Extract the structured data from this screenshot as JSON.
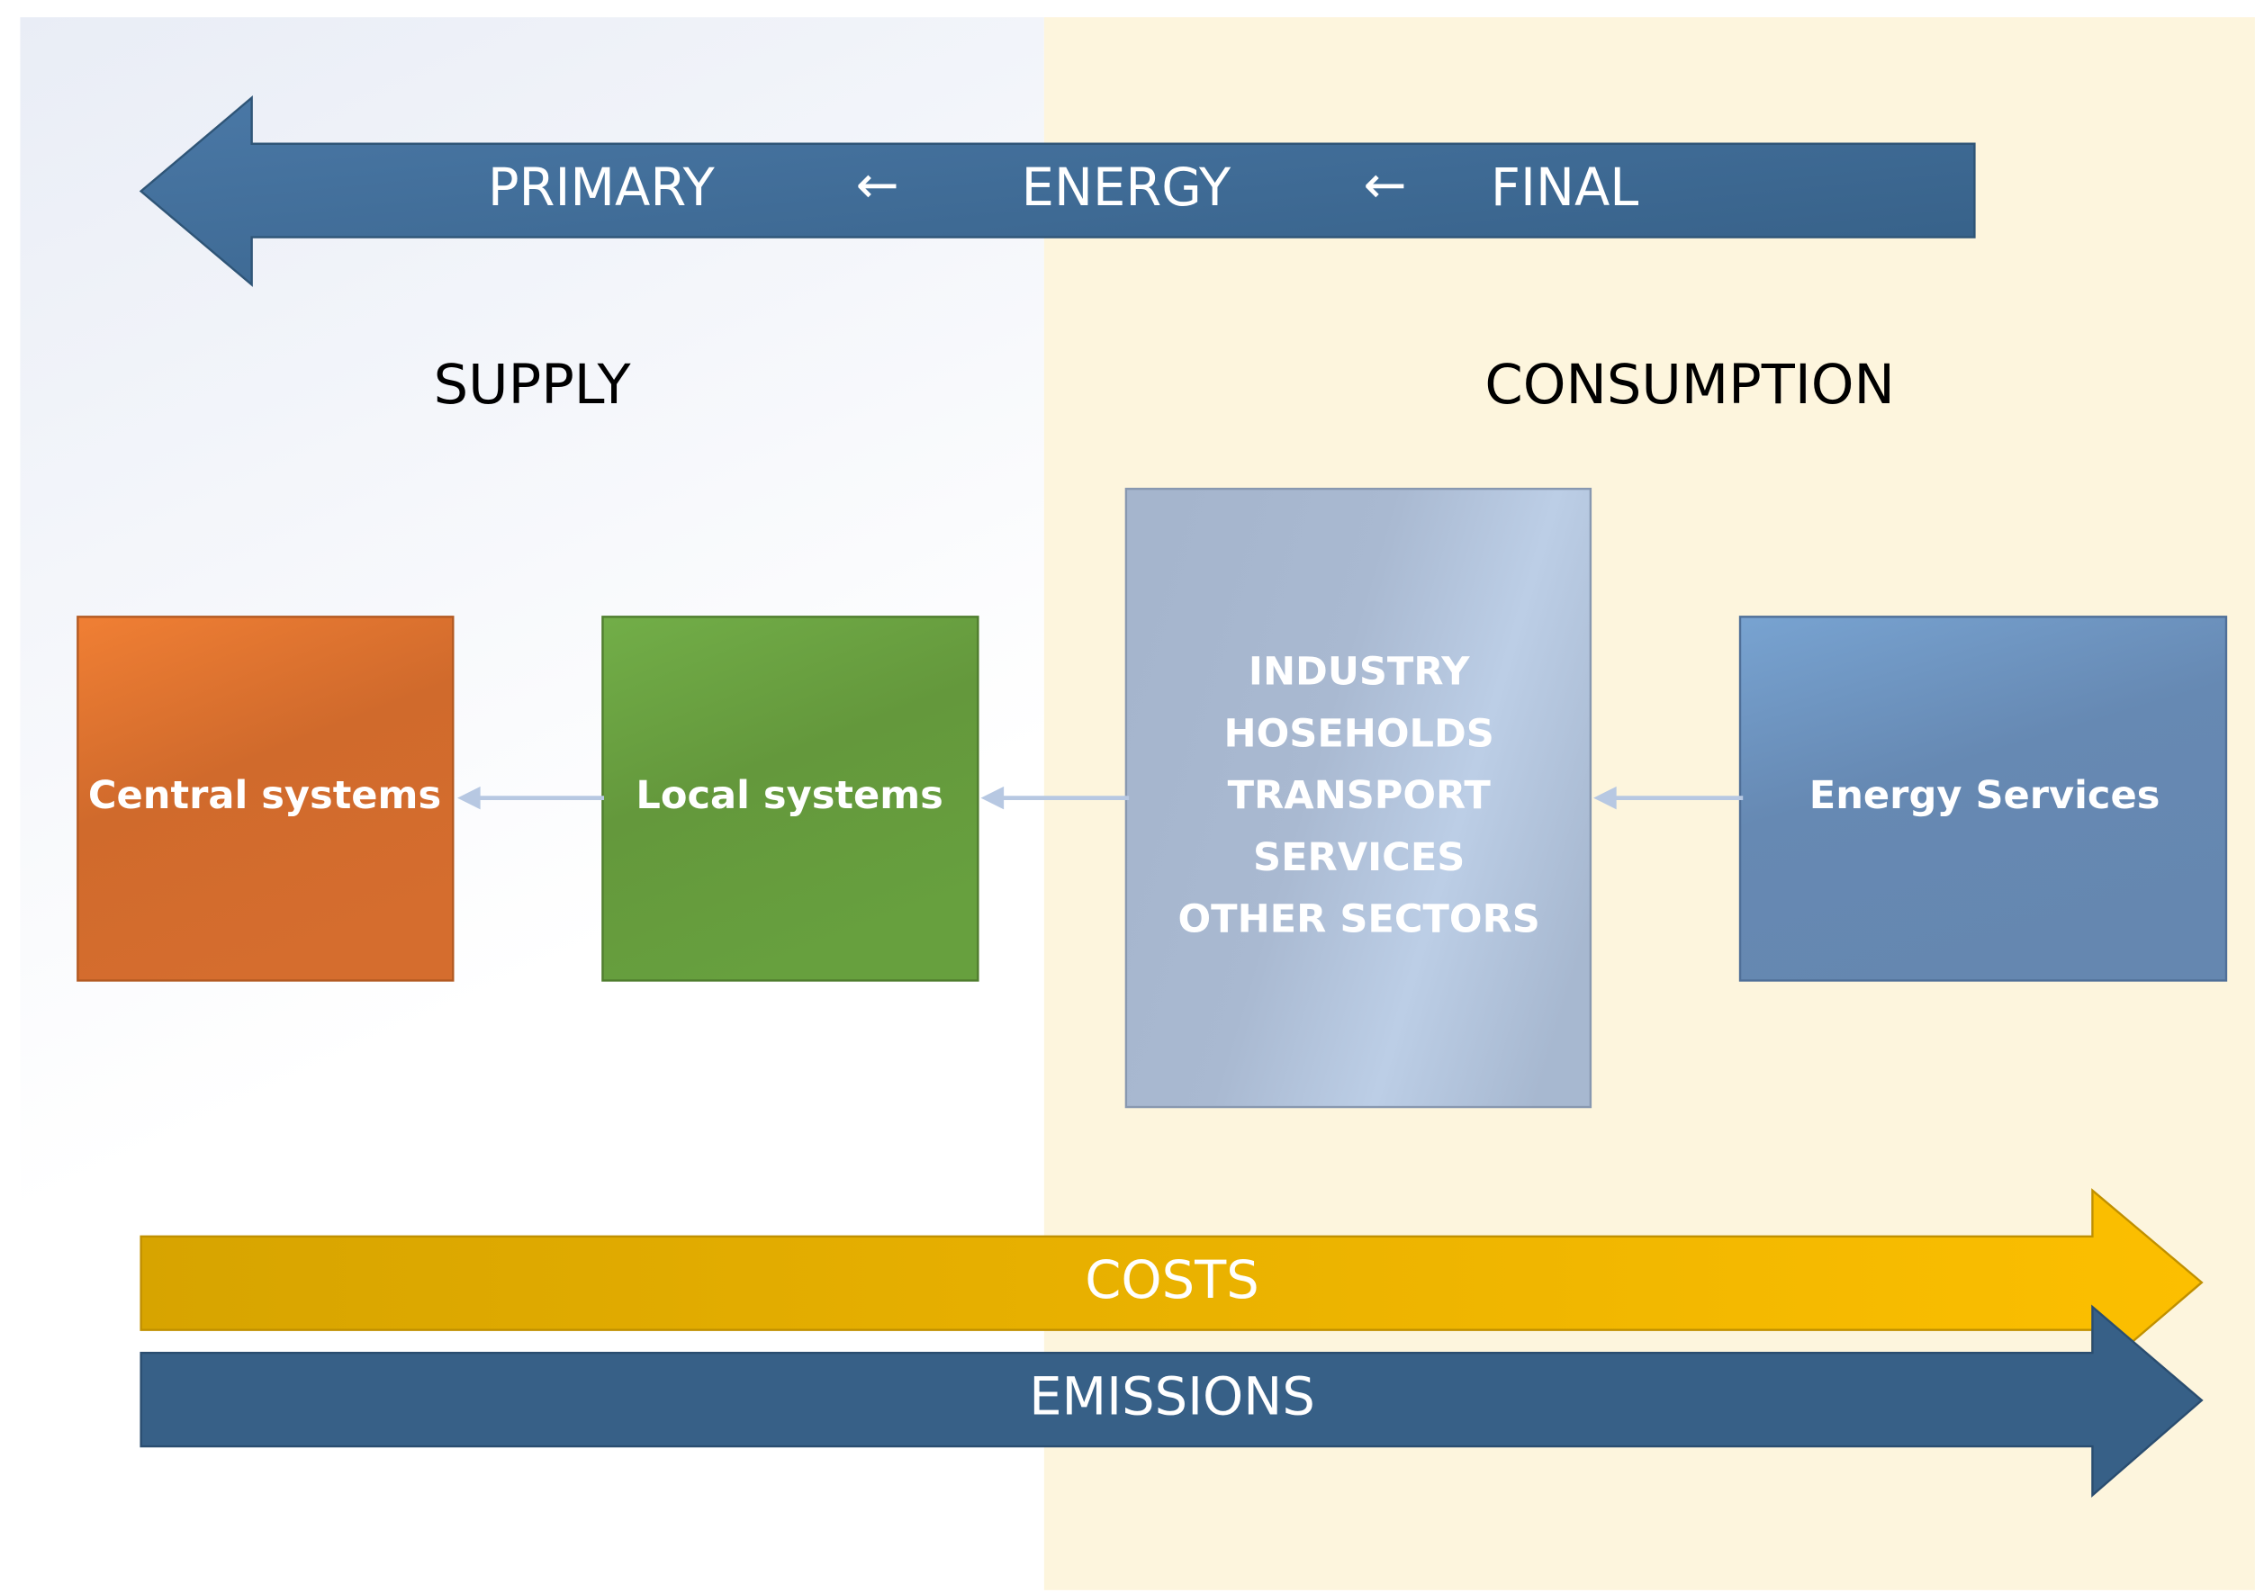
{
  "energy_flow": {
    "labels": [
      "PRIMARY",
      "ENERGY",
      "FINAL"
    ],
    "separator": "←"
  },
  "sections": {
    "supply": "SUPPLY",
    "consumption": "CONSUMPTION"
  },
  "nodes": [
    {
      "label": "Central systems"
    },
    {
      "label": "Local systems"
    },
    {
      "lines": [
        "INDUSTRY",
        "HOSEHOLDS",
        "TRANSPORT",
        "SERVICES",
        "OTHER SECTORS"
      ]
    },
    {
      "label": "Energy Services"
    }
  ],
  "bottom_arrows": {
    "costs": "COSTS",
    "emissions": "EMISSIONS"
  }
}
